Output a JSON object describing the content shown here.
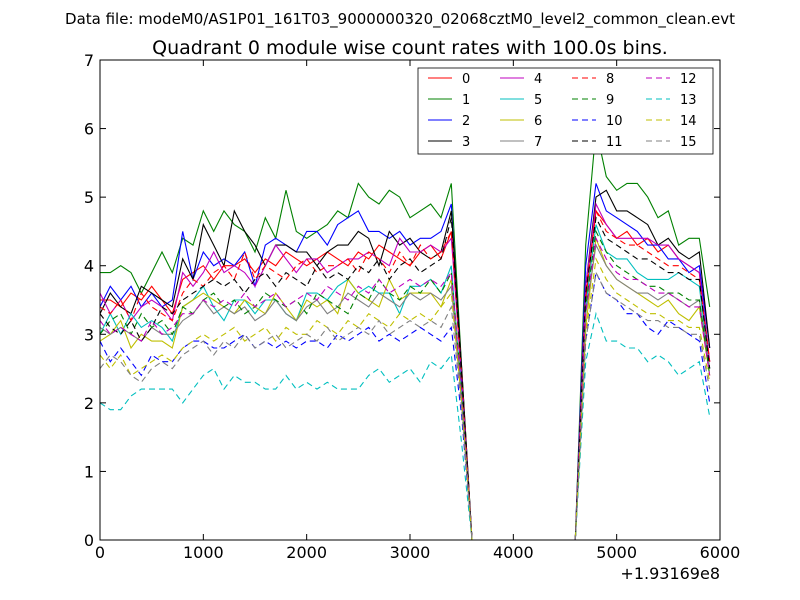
{
  "chart_data": {
    "type": "line",
    "suptitle": "Data file: modeM0/AS1P01_161T03_9000000320_02068cztM0_level2_common_clean.evt",
    "title": "Quadrant 0 module wise count rates with 100.0s bins.",
    "xlabel": "",
    "ylabel": "",
    "x_offset_label": "+1.93169e8",
    "xlim": [
      0,
      6000
    ],
    "ylim": [
      0,
      7
    ],
    "xticks": [
      "0",
      "1000",
      "2000",
      "3000",
      "4000",
      "5000",
      "6000"
    ],
    "yticks": [
      "0",
      "1",
      "2",
      "3",
      "4",
      "5",
      "6",
      "7"
    ],
    "legend_position": "top-right",
    "gap": [
      3600,
      4600
    ],
    "x": [
      0,
      100,
      200,
      300,
      400,
      500,
      600,
      700,
      800,
      900,
      1000,
      1100,
      1200,
      1300,
      1400,
      1500,
      1600,
      1700,
      1800,
      1900,
      2000,
      2100,
      2200,
      2300,
      2400,
      2500,
      2600,
      2700,
      2800,
      2900,
      3000,
      3100,
      3200,
      3300,
      3400,
      3500,
      3600,
      3700,
      3800,
      3900,
      4000,
      4100,
      4200,
      4300,
      4400,
      4500,
      4600,
      4700,
      4800,
      4900,
      5000,
      5100,
      5200,
      5300,
      5400,
      5500,
      5600,
      5700,
      5800,
      5900
    ],
    "series": [
      {
        "name": "0",
        "color": "#ff0000",
        "dash": "solid",
        "values": [
          3.5,
          3.5,
          3.4,
          3.6,
          3.5,
          3.7,
          3.5,
          3.3,
          3.8,
          3.9,
          4.0,
          3.8,
          4.0,
          4.0,
          4.1,
          3.9,
          4.1,
          4.0,
          4.2,
          4.1,
          4.0,
          4.1,
          4.2,
          4.1,
          4.0,
          4.2,
          4.1,
          4.3,
          4.2,
          4.1,
          4.0,
          4.2,
          4.3,
          4.1,
          4.5,
          2.3,
          0,
          0,
          0,
          0,
          0,
          0,
          0,
          0,
          0,
          0,
          0,
          3.5,
          4.8,
          4.6,
          4.4,
          4.5,
          4.3,
          4.4,
          4.2,
          4.3,
          4.1,
          4.0,
          3.9,
          2.6
        ]
      },
      {
        "name": "1",
        "color": "#008000",
        "dash": "solid",
        "values": [
          3.9,
          3.9,
          4.0,
          3.9,
          3.6,
          3.9,
          4.2,
          3.9,
          4.4,
          4.3,
          4.8,
          4.5,
          4.8,
          4.6,
          4.5,
          4.2,
          4.7,
          4.4,
          5.1,
          4.5,
          4.4,
          4.5,
          4.6,
          4.8,
          4.7,
          5.2,
          5.0,
          4.9,
          5.1,
          5.0,
          4.7,
          4.8,
          4.9,
          4.7,
          5.2,
          2.5,
          0,
          0,
          0,
          0,
          0,
          0,
          0,
          0,
          0,
          0,
          0,
          4.3,
          6.0,
          5.3,
          5.1,
          5.2,
          5.2,
          5.0,
          4.7,
          4.8,
          4.3,
          4.4,
          4.4,
          3.4
        ]
      },
      {
        "name": "2",
        "color": "#0000ff",
        "dash": "solid",
        "values": [
          3.4,
          3.7,
          3.5,
          3.7,
          3.4,
          3.6,
          3.4,
          3.5,
          4.5,
          3.8,
          4.2,
          4.0,
          4.1,
          4.0,
          4.2,
          3.7,
          4.3,
          4.4,
          4.3,
          4.2,
          4.5,
          4.5,
          4.3,
          4.6,
          4.7,
          4.8,
          4.5,
          4.5,
          4.4,
          4.5,
          4.3,
          4.4,
          4.4,
          4.5,
          4.9,
          2.3,
          0,
          0,
          0,
          0,
          0,
          0,
          0,
          0,
          0,
          0,
          0,
          4.0,
          5.2,
          4.8,
          4.7,
          4.6,
          4.5,
          4.3,
          4.3,
          4.1,
          4.1,
          3.9,
          4.0,
          2.8
        ]
      },
      {
        "name": "3",
        "color": "#000000",
        "dash": "solid",
        "values": [
          3.3,
          3.6,
          3.4,
          3.3,
          3.7,
          3.6,
          3.5,
          3.4,
          4.1,
          3.8,
          4.6,
          4.3,
          4.0,
          4.8,
          4.5,
          4.3,
          4.0,
          4.3,
          4.3,
          4.2,
          4.2,
          4.0,
          4.2,
          4.3,
          4.3,
          4.5,
          4.4,
          4.0,
          4.5,
          4.3,
          4.4,
          4.2,
          4.1,
          4.2,
          4.8,
          2.5,
          0,
          0,
          0,
          0,
          0,
          0,
          0,
          0,
          0,
          0,
          0,
          3.7,
          5.0,
          5.1,
          4.8,
          4.8,
          4.7,
          4.6,
          4.3,
          4.4,
          4.2,
          4.1,
          4.2,
          2.8
        ]
      },
      {
        "name": "4",
        "color": "#bf00bf",
        "dash": "solid",
        "values": [
          3.6,
          3.3,
          3.5,
          3.2,
          3.4,
          3.5,
          3.4,
          3.2,
          3.9,
          3.7,
          3.9,
          4.2,
          3.9,
          4.0,
          3.9,
          3.7,
          4.0,
          4.3,
          4.1,
          3.9,
          4.1,
          4.1,
          3.9,
          4.0,
          4.1,
          4.1,
          4.2,
          4.1,
          4.0,
          4.4,
          4.2,
          4.2,
          4.3,
          4.2,
          4.4,
          2.4,
          0,
          0,
          0,
          0,
          0,
          0,
          0,
          0,
          0,
          0,
          0,
          3.7,
          4.9,
          4.6,
          4.4,
          4.4,
          4.4,
          4.4,
          4.3,
          4.3,
          4.1,
          4.0,
          3.9,
          2.6
        ]
      },
      {
        "name": "5",
        "color": "#00bfbf",
        "dash": "solid",
        "values": [
          3.0,
          3.3,
          3.0,
          3.3,
          3.1,
          3.2,
          3.1,
          2.9,
          3.4,
          3.5,
          3.7,
          3.4,
          3.2,
          3.5,
          3.5,
          3.3,
          3.5,
          3.5,
          3.3,
          3.2,
          3.6,
          3.6,
          3.5,
          3.7,
          3.8,
          3.6,
          3.7,
          3.6,
          3.6,
          3.3,
          3.7,
          3.7,
          3.8,
          3.6,
          4.0,
          2.1,
          0,
          0,
          0,
          0,
          0,
          0,
          0,
          0,
          0,
          0,
          0,
          3.4,
          4.6,
          4.2,
          4.1,
          4.1,
          3.9,
          3.8,
          3.8,
          3.8,
          3.9,
          3.8,
          3.7,
          2.5
        ]
      },
      {
        "name": "6",
        "color": "#bfbf00",
        "dash": "solid",
        "values": [
          2.9,
          3.0,
          3.2,
          2.8,
          3.0,
          2.9,
          2.9,
          2.8,
          3.4,
          3.5,
          3.6,
          3.5,
          3.4,
          3.3,
          3.5,
          3.4,
          3.3,
          3.6,
          3.4,
          3.2,
          3.5,
          3.4,
          3.5,
          3.3,
          3.8,
          3.6,
          3.5,
          3.4,
          3.8,
          3.5,
          3.6,
          3.6,
          3.6,
          3.4,
          3.8,
          2.0,
          0,
          0,
          0,
          0,
          0,
          0,
          0,
          0,
          0,
          0,
          0,
          3.1,
          4.4,
          4.0,
          3.8,
          3.7,
          3.6,
          3.5,
          3.4,
          3.5,
          3.3,
          3.2,
          3.4,
          2.4
        ]
      },
      {
        "name": "7",
        "color": "#808080",
        "dash": "solid",
        "values": [
          3.1,
          3.0,
          3.1,
          3.0,
          2.9,
          3.1,
          3.0,
          3.0,
          3.2,
          3.3,
          3.5,
          3.3,
          3.4,
          3.3,
          3.4,
          3.2,
          3.3,
          3.5,
          3.3,
          3.2,
          3.4,
          3.5,
          3.3,
          3.4,
          3.6,
          3.5,
          3.4,
          3.6,
          3.5,
          3.4,
          3.6,
          3.5,
          3.6,
          3.5,
          3.7,
          2.0,
          0,
          0,
          0,
          0,
          0,
          0,
          0,
          0,
          0,
          0,
          0,
          3.3,
          4.3,
          4.0,
          3.8,
          3.7,
          3.6,
          3.6,
          3.5,
          3.6,
          3.5,
          3.4,
          3.5,
          2.5
        ]
      },
      {
        "name": "8",
        "color": "#ff0000",
        "dash": "dashed",
        "values": [
          3.4,
          3.3,
          3.5,
          3.2,
          3.6,
          3.4,
          3.3,
          3.2,
          3.6,
          3.8,
          3.7,
          3.9,
          4.0,
          3.8,
          4.2,
          3.8,
          4.0,
          3.9,
          3.8,
          4.0,
          4.1,
          3.9,
          4.0,
          4.0,
          4.1,
          3.9,
          4.2,
          4.1,
          3.9,
          4.2,
          4.0,
          4.3,
          4.1,
          4.2,
          4.5,
          2.4,
          0,
          0,
          0,
          0,
          0,
          0,
          0,
          0,
          0,
          0,
          0,
          3.6,
          4.8,
          4.5,
          4.4,
          4.3,
          4.3,
          4.2,
          4.1,
          4.0,
          4.0,
          3.9,
          3.8,
          2.6
        ]
      },
      {
        "name": "9",
        "color": "#008000",
        "dash": "dashed",
        "values": [
          3.0,
          3.2,
          3.3,
          3.0,
          3.3,
          3.1,
          3.2,
          3.0,
          3.4,
          3.3,
          3.5,
          3.6,
          3.4,
          3.5,
          3.3,
          3.4,
          3.6,
          3.5,
          3.4,
          3.5,
          3.3,
          3.6,
          3.5,
          3.4,
          3.3,
          3.6,
          3.5,
          3.8,
          3.6,
          3.5,
          3.7,
          3.6,
          3.8,
          3.6,
          3.9,
          2.2,
          0,
          0,
          0,
          0,
          0,
          0,
          0,
          0,
          0,
          0,
          0,
          3.4,
          4.5,
          4.2,
          4.0,
          3.9,
          3.8,
          3.7,
          3.7,
          3.6,
          3.6,
          3.5,
          3.5,
          2.4
        ]
      },
      {
        "name": "10",
        "color": "#0000ff",
        "dash": "dashed",
        "values": [
          2.9,
          2.6,
          2.8,
          2.6,
          2.4,
          2.7,
          2.6,
          2.6,
          2.8,
          2.9,
          2.9,
          2.8,
          2.8,
          2.9,
          3.0,
          2.8,
          2.9,
          2.8,
          2.9,
          2.8,
          2.9,
          2.9,
          2.8,
          3.0,
          2.9,
          3.0,
          3.1,
          2.9,
          3.0,
          2.9,
          3.0,
          3.1,
          3.0,
          2.9,
          3.1,
          1.8,
          0,
          0,
          0,
          0,
          0,
          0,
          0,
          0,
          0,
          0,
          0,
          2.9,
          3.9,
          3.6,
          3.5,
          3.3,
          3.3,
          3.1,
          3.0,
          3.2,
          3.1,
          3.0,
          2.9,
          2.0
        ]
      },
      {
        "name": "11",
        "color": "#000000",
        "dash": "dashed",
        "values": [
          3.3,
          3.1,
          3.0,
          3.2,
          2.9,
          3.1,
          3.4,
          3.3,
          3.5,
          3.6,
          3.7,
          3.8,
          3.7,
          3.8,
          3.6,
          3.8,
          3.9,
          3.7,
          3.9,
          3.8,
          3.7,
          4.0,
          3.8,
          3.9,
          3.8,
          4.0,
          3.9,
          4.1,
          3.8,
          4.0,
          4.1,
          3.9,
          4.0,
          4.1,
          4.7,
          2.4,
          0,
          0,
          0,
          0,
          0,
          0,
          0,
          0,
          0,
          0,
          0,
          3.6,
          4.7,
          4.4,
          4.3,
          4.2,
          4.1,
          4.1,
          4.0,
          3.9,
          3.9,
          3.8,
          3.8,
          2.5
        ]
      },
      {
        "name": "12",
        "color": "#bf00bf",
        "dash": "dashed",
        "values": [
          3.2,
          3.0,
          3.1,
          3.0,
          2.9,
          3.2,
          3.0,
          3.1,
          3.3,
          3.3,
          3.5,
          3.4,
          3.5,
          3.4,
          3.6,
          3.4,
          3.5,
          3.6,
          3.4,
          3.5,
          3.6,
          3.5,
          3.7,
          3.6,
          3.5,
          3.7,
          3.6,
          3.8,
          3.6,
          3.7,
          3.8,
          3.7,
          3.8,
          3.7,
          3.9,
          2.1,
          0,
          0,
          0,
          0,
          0,
          0,
          0,
          0,
          0,
          0,
          0,
          3.3,
          4.4,
          4.1,
          3.9,
          3.8,
          3.8,
          3.7,
          3.6,
          3.6,
          3.5,
          3.4,
          3.4,
          2.4
        ]
      },
      {
        "name": "13",
        "color": "#00bfbf",
        "dash": "dashed",
        "values": [
          2.0,
          1.9,
          1.9,
          2.1,
          2.2,
          2.2,
          2.2,
          2.2,
          2.0,
          2.2,
          2.4,
          2.5,
          2.2,
          2.4,
          2.3,
          2.3,
          2.2,
          2.2,
          2.4,
          2.2,
          2.3,
          2.2,
          2.3,
          2.2,
          2.2,
          2.2,
          2.4,
          2.5,
          2.3,
          2.4,
          2.5,
          2.3,
          2.6,
          2.5,
          2.7,
          1.4,
          0,
          0,
          0,
          0,
          0,
          0,
          0,
          0,
          0,
          0,
          0,
          2.6,
          3.3,
          2.9,
          2.9,
          2.8,
          2.8,
          2.6,
          2.7,
          2.6,
          2.4,
          2.5,
          2.6,
          1.8
        ]
      },
      {
        "name": "14",
        "color": "#bfbf00",
        "dash": "dashed",
        "values": [
          2.7,
          2.5,
          2.7,
          2.4,
          2.5,
          2.6,
          2.7,
          2.6,
          2.8,
          2.9,
          3.0,
          2.9,
          3.0,
          3.1,
          2.9,
          3.0,
          3.1,
          2.9,
          3.1,
          3.0,
          3.0,
          3.2,
          3.1,
          3.0,
          3.2,
          3.1,
          3.3,
          3.2,
          3.1,
          3.3,
          3.2,
          3.3,
          3.2,
          3.4,
          3.6,
          2.0,
          0,
          0,
          0,
          0,
          0,
          0,
          0,
          0,
          0,
          0,
          0,
          3.0,
          4.1,
          3.8,
          3.6,
          3.5,
          3.4,
          3.3,
          3.3,
          3.2,
          3.2,
          3.1,
          3.1,
          2.3
        ]
      },
      {
        "name": "15",
        "color": "#808080",
        "dash": "dashed",
        "values": [
          2.5,
          2.7,
          2.6,
          2.4,
          2.3,
          2.5,
          2.6,
          2.5,
          2.7,
          2.8,
          2.9,
          2.7,
          2.9,
          2.8,
          3.0,
          2.8,
          2.9,
          3.0,
          2.8,
          2.9,
          3.0,
          2.9,
          3.1,
          2.9,
          3.0,
          3.1,
          3.0,
          3.2,
          3.0,
          3.1,
          3.2,
          3.1,
          3.2,
          3.1,
          3.4,
          1.9,
          0,
          0,
          0,
          0,
          0,
          0,
          0,
          0,
          0,
          0,
          0,
          2.9,
          3.9,
          3.6,
          3.5,
          3.4,
          3.3,
          3.2,
          3.2,
          3.1,
          3.1,
          3.0,
          3.0,
          2.2
        ]
      }
    ]
  }
}
